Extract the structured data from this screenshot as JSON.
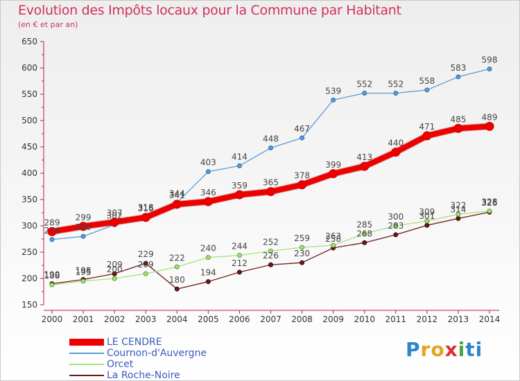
{
  "title": "Evolution des Impôts locaux pour la Commune par Habitant",
  "subtitle": "(en € et par an)",
  "logo": {
    "text": "Proxiti",
    "letters": [
      "P",
      "r",
      "o",
      "x",
      "i",
      "ti"
    ]
  },
  "chart_data": {
    "type": "line",
    "x": [
      "2000",
      "2001",
      "2002",
      "2003",
      "2004",
      "2005",
      "2006",
      "2007",
      "2008",
      "2009",
      "2010",
      "2011",
      "2012",
      "2013",
      "2014"
    ],
    "yticks": [
      "150",
      "200",
      "250",
      "300",
      "350",
      "400",
      "450",
      "500",
      "550",
      "600",
      "650"
    ],
    "ylim": [
      150,
      650
    ],
    "grid": false,
    "legend_placement": "bottom-left",
    "series": [
      {
        "name": "LE CENDRE",
        "color": "#ee0000",
        "values": [
          289,
          299,
          307,
          316,
          341,
          346,
          359,
          365,
          378,
          399,
          413,
          440,
          471,
          485,
          489
        ]
      },
      {
        "name": "Cournon-d'Auvergne",
        "color": "#5b9bd5",
        "values": [
          274,
          280,
          302,
          318,
          344,
          403,
          414,
          448,
          467,
          539,
          552,
          552,
          558,
          583,
          598
        ]
      },
      {
        "name": "Orcet",
        "color": "#a8e07a",
        "values": [
          188,
          195,
          200,
          209,
          222,
          240,
          244,
          252,
          259,
          263,
          285,
          300,
          309,
          322,
          328
        ]
      },
      {
        "name": "La Roche-Noire",
        "color": "#6b1818",
        "values": [
          190,
          198,
          209,
          229,
          180,
          194,
          212,
          226,
          230,
          258,
          268,
          283,
          301,
          314,
          326
        ]
      }
    ],
    "point_labels": [
      [
        "289",
        "299",
        "307",
        "316",
        "341",
        "346",
        "359",
        "365",
        "378",
        "399",
        "413",
        "440",
        "471",
        "485",
        "489"
      ],
      [
        "274",
        "280",
        "302",
        "318",
        "344",
        "403",
        "414",
        "448",
        "467",
        "539",
        "552",
        "552",
        "558",
        "583",
        "598"
      ],
      [
        "188",
        "195",
        "200",
        "209",
        "222",
        "240",
        "244",
        "252",
        "259",
        "263",
        "285",
        "300",
        "309",
        "322",
        "328"
      ],
      [
        "190",
        "198",
        "209",
        "229",
        "180",
        "194",
        "212",
        "226",
        "230",
        "258",
        "268",
        "283",
        "301",
        "314",
        "326"
      ]
    ]
  }
}
